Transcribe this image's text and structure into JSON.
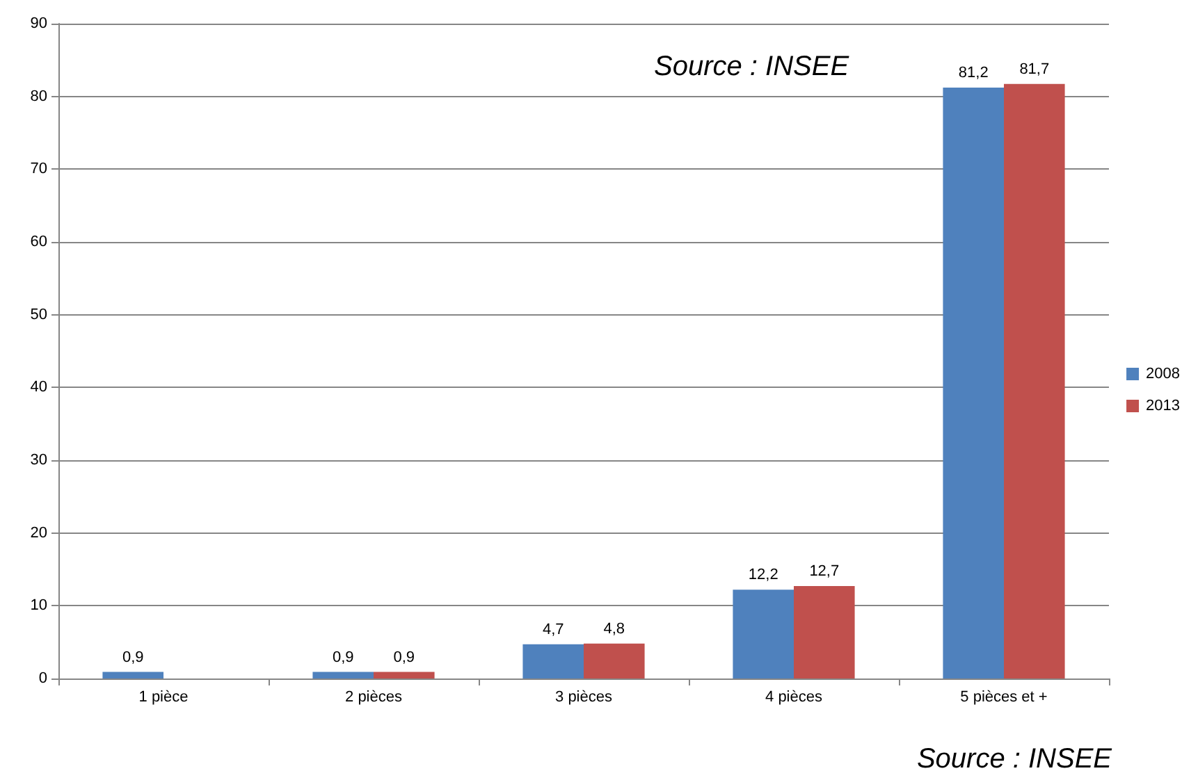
{
  "chart_data": {
    "type": "bar",
    "categories": [
      "1 pièce",
      "2 pièces",
      "3 pièces",
      "4 pièces",
      "5 pièces et +"
    ],
    "series": [
      {
        "name": "2008",
        "color": "#4f81bd",
        "values": [
          0.9,
          0.9,
          4.7,
          12.2,
          81.2
        ],
        "value_labels": [
          "0,9",
          "0,9",
          "4,7",
          "12,2",
          "81,2"
        ]
      },
      {
        "name": "2013",
        "color": "#c0504d",
        "values": [
          null,
          0.9,
          4.8,
          12.7,
          81.7
        ],
        "value_labels": [
          null,
          "0,9",
          "4,8",
          "12,7",
          "81,7"
        ]
      }
    ],
    "ylim": [
      0,
      90
    ],
    "yticks": [
      0,
      10,
      20,
      30,
      40,
      50,
      60,
      70,
      80,
      90
    ],
    "grid": "y",
    "legend": "right",
    "annotations": [
      "Source : INSEE",
      "Source : INSEE"
    ]
  }
}
